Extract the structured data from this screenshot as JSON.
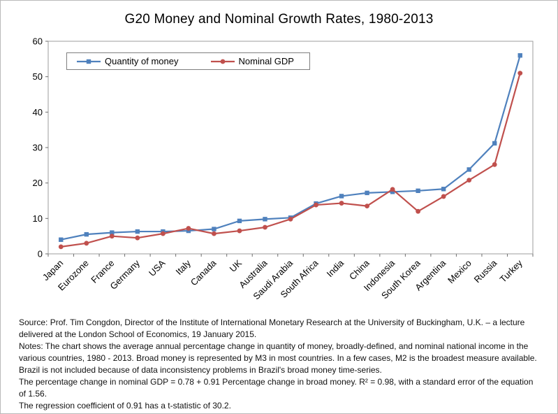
{
  "page": {
    "title": "G20 Money and Nominal Growth Rates, 1980-2013"
  },
  "chart_data": {
    "type": "line",
    "title": "G20 Money and Nominal Growth Rates, 1980-2013",
    "categories": [
      "Japan",
      "Eurozone",
      "France",
      "Germany",
      "USA",
      "Italy",
      "Canada",
      "UK",
      "Australia",
      "Saudi Arabia",
      "South Africa",
      "India",
      "China",
      "Indonesia",
      "South Korea",
      "Argentina",
      "Mexico",
      "Russia",
      "Turkey"
    ],
    "series": [
      {
        "name": "Quantity of money",
        "color": "#4f81bd",
        "marker": "square",
        "values": [
          4,
          5.5,
          6,
          6.3,
          6.3,
          6.5,
          7,
          9.3,
          9.8,
          10.2,
          14.2,
          16.3,
          17.2,
          17.5,
          17.8,
          18.3,
          23.8,
          31.2,
          56
        ]
      },
      {
        "name": "Nominal GDP",
        "color": "#c0504d",
        "marker": "circle",
        "values": [
          2,
          3,
          5,
          4.5,
          5.7,
          7.2,
          5.7,
          6.5,
          7.5,
          9.8,
          13.8,
          14.3,
          13.5,
          18.2,
          12,
          16.2,
          20.8,
          25.2,
          51
        ]
      }
    ],
    "xlabel": "",
    "ylabel": "",
    "ylim": [
      0,
      60
    ],
    "ytick_step": 10,
    "grid": false,
    "legend_position": "top-left-inside"
  },
  "notes": {
    "source_line": "Source: Prof. Tim Congdon, Director of the Institute of International Monetary Research at the University of Buckingham, U.K. – a lecture delivered at the London School of Economics, 19 January 2015.",
    "notes_line": "Notes: The chart shows the average annual percentage change in quantity of money, broadly-defined, and nominal national income in the various countries, 1980 - 2013. Broad money is represented by M3 in most countries. In a few cases, M2 is the broadest measure available. Brazil is not included because of data inconsistency problems in Brazil's broad money time-series.",
    "regression_line1": "The percentage change in nominal GDP = 0.78 + 0.91 Percentage change in broad money. R² = 0.98, with a standard error of the equation of 1.56.",
    "regression_line2": "The regression coefficient of 0.91 has a t-statistic of 30.2."
  }
}
